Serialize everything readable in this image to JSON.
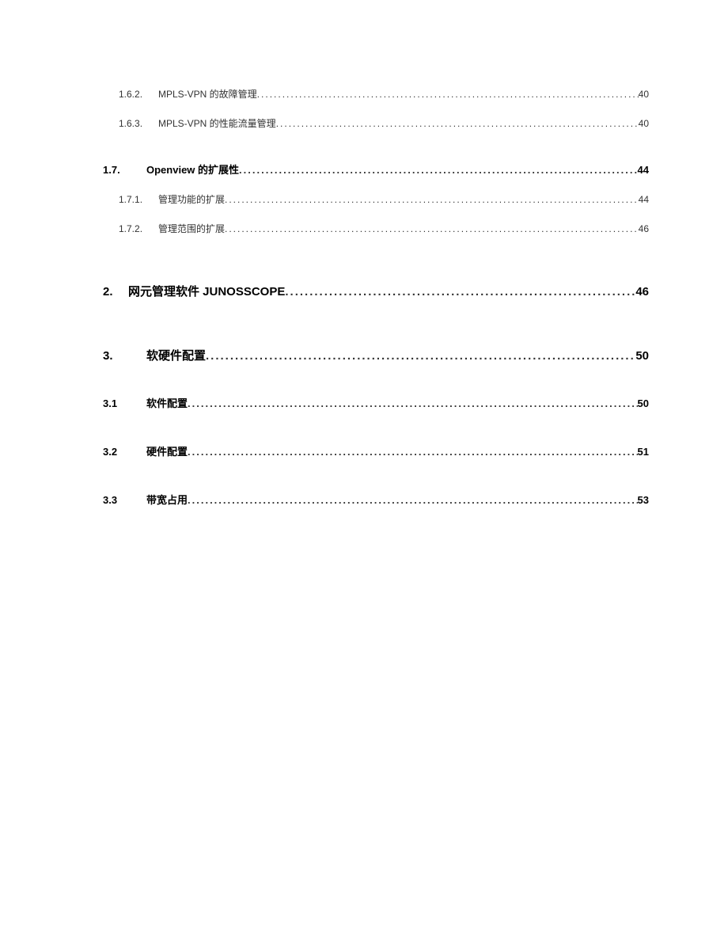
{
  "entries": [
    {
      "cls": "level-3",
      "num": "1.6.2.",
      "title": "MPLS-VPN 的故障管理",
      "page": "40",
      "gap": " "
    },
    {
      "cls": "level-3",
      "num": "1.6.3.",
      "title": "MPLS-VPN 的性能流量管理",
      "page": "40",
      "gap": " "
    },
    {
      "cls": "spacer-md"
    },
    {
      "cls": "level-2",
      "num": "1.7.",
      "title": "Openview 的扩展性",
      "page": "44",
      "gap": " "
    },
    {
      "cls": "level-3",
      "num": "1.7.1.",
      "title": "管理功能的扩展",
      "page": "44",
      "gap": " "
    },
    {
      "cls": "level-3",
      "num": "1.7.2.",
      "title": "管理范围的扩展",
      "page": "46",
      "gap": " "
    },
    {
      "cls": "spacer-lg"
    },
    {
      "cls": "level-1",
      "num": "2.",
      "title": "网元管理软件 JUNOSSCOPE",
      "page": "46",
      "gap": " "
    },
    {
      "cls": "spacer-lg"
    },
    {
      "cls": "level-1b",
      "num": "3.",
      "title": "软硬件配置",
      "page": "50",
      "gap": " "
    },
    {
      "cls": "spacer-md"
    },
    {
      "cls": "level-2b",
      "num": "3.1",
      "title": "软件配置",
      "page": "50",
      "gap": " "
    },
    {
      "cls": "spacer-md"
    },
    {
      "cls": "level-2b",
      "num": "3.2",
      "title": "硬件配置",
      "page": "51",
      "gap": " "
    },
    {
      "cls": "spacer-md"
    },
    {
      "cls": "level-2b",
      "num": "3.3",
      "title": "带宽占用",
      "page": "53",
      "gap": " "
    }
  ],
  "dot_fill": ".............................................................................................................................................................................................."
}
